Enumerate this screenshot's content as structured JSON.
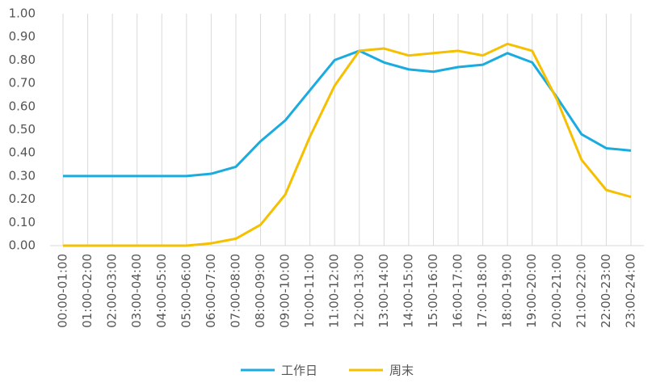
{
  "chart_data": {
    "type": "line",
    "categories": [
      "00:00-01:00",
      "01:00-02:00",
      "02:00-03:00",
      "03:00-04:00",
      "04:00-05:00",
      "05:00-06:00",
      "06:00-07:00",
      "07:00-08:00",
      "08:00-09:00",
      "09:00-10:00",
      "10:00-11:00",
      "11:00-12:00",
      "12:00-13:00",
      "13:00-14:00",
      "14:00-15:00",
      "15:00-16:00",
      "16:00-17:00",
      "17:00-18:00",
      "18:00-19:00",
      "19:00-20:00",
      "20:00-21:00",
      "21:00-22:00",
      "22:00-23:00",
      "23:00-24:00"
    ],
    "series": [
      {
        "name": "工作日",
        "color": "#1aabdf",
        "values": [
          0.3,
          0.3,
          0.3,
          0.3,
          0.3,
          0.3,
          0.31,
          0.34,
          0.45,
          0.54,
          0.67,
          0.8,
          0.84,
          0.79,
          0.76,
          0.75,
          0.77,
          0.78,
          0.83,
          0.79,
          0.64,
          0.48,
          0.42,
          0.41
        ]
      },
      {
        "name": "周末",
        "color": "#f5c000",
        "values": [
          0.0,
          0.0,
          0.0,
          0.0,
          0.0,
          0.0,
          0.01,
          0.03,
          0.09,
          0.22,
          0.47,
          0.69,
          0.84,
          0.85,
          0.82,
          0.83,
          0.84,
          0.82,
          0.87,
          0.84,
          0.63,
          0.37,
          0.24,
          0.21
        ]
      }
    ],
    "ylim": [
      0,
      1
    ],
    "yticks": [
      {
        "value": 0,
        "label": "0.00"
      },
      {
        "value": 0.1,
        "label": "0.10"
      },
      {
        "value": 0.2,
        "label": "0.20"
      },
      {
        "value": 0.3,
        "label": "0.30"
      },
      {
        "value": 0.4,
        "label": "0.40"
      },
      {
        "value": 0.5,
        "label": "0.50"
      },
      {
        "value": 0.6,
        "label": "0.60"
      },
      {
        "value": 0.7,
        "label": "0.70"
      },
      {
        "value": 0.8,
        "label": "0.80"
      },
      {
        "value": 0.9,
        "label": "0.90"
      },
      {
        "value": 1,
        "label": "1.00"
      }
    ],
    "grid": true
  }
}
